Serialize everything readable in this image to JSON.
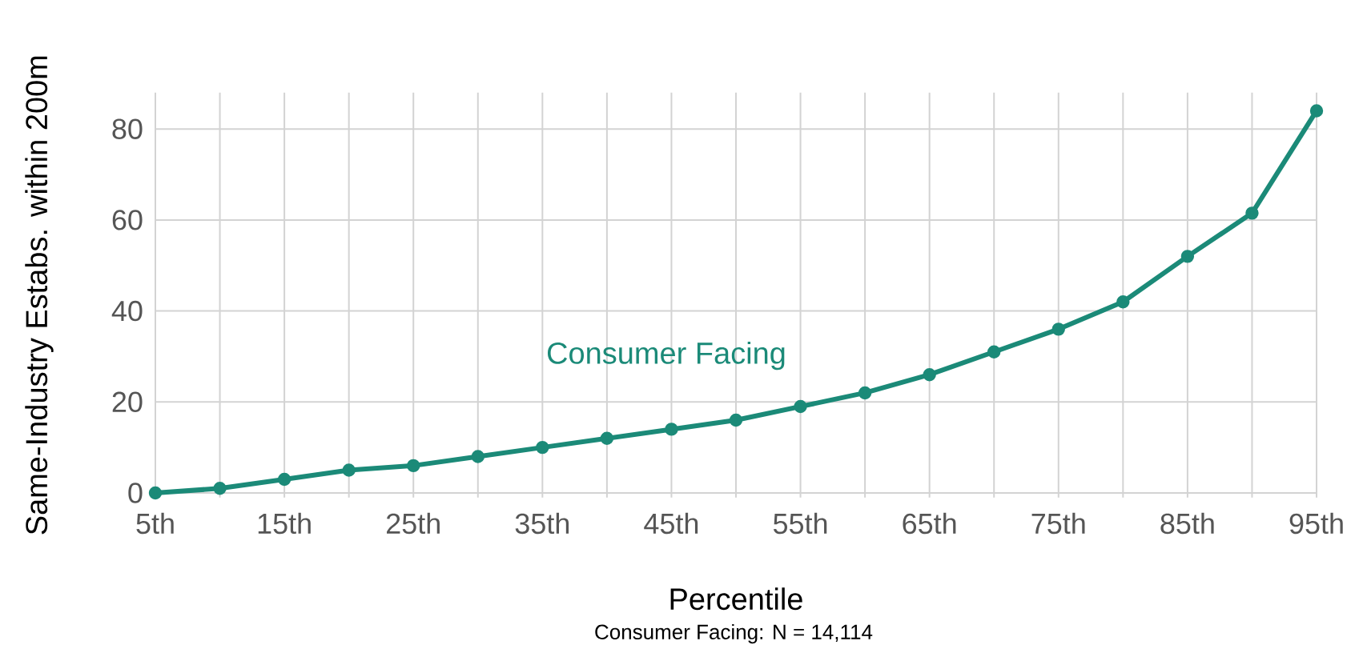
{
  "chart_data": {
    "type": "line",
    "xlabel": "Percentile",
    "ylabel": "Same-Industry Estabs. within 200m",
    "x": [
      5,
      10,
      15,
      20,
      25,
      30,
      35,
      40,
      45,
      50,
      55,
      60,
      65,
      70,
      75,
      80,
      85,
      90,
      95
    ],
    "series": [
      {
        "name": "Consumer Facing",
        "color": "#1b8a78",
        "values": [
          0,
          1,
          3,
          5,
          6,
          8,
          10,
          12,
          14,
          16,
          19,
          22,
          26,
          31,
          36,
          42,
          52,
          61.5,
          84
        ]
      }
    ],
    "xlim": [
      5,
      95
    ],
    "xticks": [
      {
        "value": 5,
        "label": "5th"
      },
      {
        "value": 10,
        "label": null
      },
      {
        "value": 15,
        "label": "15th"
      },
      {
        "value": 20,
        "label": null
      },
      {
        "value": 25,
        "label": "25th"
      },
      {
        "value": 30,
        "label": null
      },
      {
        "value": 35,
        "label": "35th"
      },
      {
        "value": 40,
        "label": null
      },
      {
        "value": 45,
        "label": "45th"
      },
      {
        "value": 50,
        "label": null
      },
      {
        "value": 55,
        "label": "55th"
      },
      {
        "value": 60,
        "label": null
      },
      {
        "value": 65,
        "label": "65th"
      },
      {
        "value": 70,
        "label": null
      },
      {
        "value": 75,
        "label": "75th"
      },
      {
        "value": 80,
        "label": null
      },
      {
        "value": 85,
        "label": "85th"
      },
      {
        "value": 90,
        "label": null
      },
      {
        "value": 95,
        "label": "95th"
      }
    ],
    "ylim": [
      -1,
      88
    ],
    "yticks": [
      0,
      20,
      40,
      60,
      80
    ],
    "grid": true,
    "marker": "circle",
    "line_style": "solid",
    "annotations": [
      "Consumer Facing: N = 14,114"
    ]
  }
}
